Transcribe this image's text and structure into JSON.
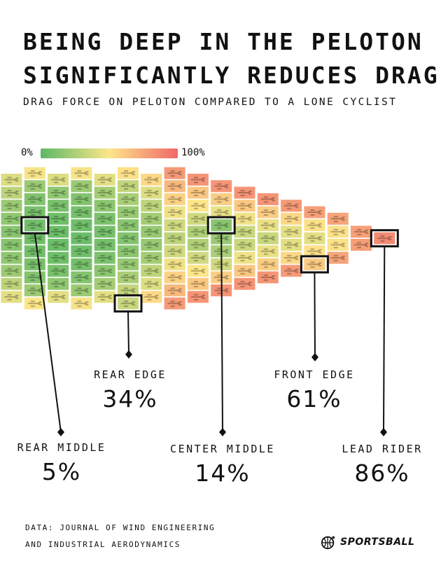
{
  "header": {
    "title_line1": "BEING DEEP IN THE PELOTON",
    "title_line2": "SIGNIFICANTLY REDUCES DRAG",
    "subtitle": "DRAG FORCE ON PELOTON COMPARED TO A LONE CYCLIST"
  },
  "legend": {
    "min_label": "0%",
    "max_label": "100%",
    "colors": [
      "#5cb865",
      "#fde68a",
      "#f0686a"
    ]
  },
  "chart_data": {
    "type": "heatmap",
    "title": "BEING DEEP IN THE PELOTON SIGNIFICANTLY REDUCES DRAG",
    "subtitle": "DRAG FORCE ON PELOTON COMPARED TO A LONE CYCLIST",
    "scale": {
      "min": 0,
      "max": 100,
      "unit": "%"
    },
    "columns": [
      {
        "rows": 10,
        "values": [
          40,
          30,
          20,
          16,
          14,
          14,
          16,
          20,
          30,
          42
        ]
      },
      {
        "rows": 11,
        "values": [
          48,
          20,
          12,
          9,
          7,
          6,
          7,
          9,
          12,
          20,
          50
        ]
      },
      {
        "rows": 10,
        "values": [
          40,
          16,
          9,
          6,
          5,
          5,
          6,
          9,
          16,
          42
        ]
      },
      {
        "rows": 11,
        "values": [
          48,
          20,
          12,
          8,
          6,
          5,
          6,
          8,
          12,
          20,
          48
        ]
      },
      {
        "rows": 10,
        "values": [
          42,
          22,
          15,
          10,
          8,
          8,
          10,
          15,
          22,
          42
        ]
      },
      {
        "rows": 11,
        "values": [
          52,
          32,
          24,
          18,
          14,
          12,
          14,
          18,
          24,
          32,
          34
        ]
      },
      {
        "rows": 10,
        "values": [
          55,
          40,
          30,
          22,
          18,
          18,
          22,
          30,
          40,
          55
        ]
      },
      {
        "rows": 11,
        "values": [
          80,
          68,
          58,
          46,
          36,
          30,
          36,
          46,
          58,
          68,
          80
        ]
      },
      {
        "rows": 10,
        "values": [
          82,
          62,
          50,
          36,
          26,
          26,
          36,
          50,
          62,
          82
        ]
      },
      {
        "rows": 9,
        "values": [
          82,
          60,
          44,
          14,
          20,
          24,
          36,
          60,
          82
        ]
      },
      {
        "rows": 8,
        "values": [
          82,
          62,
          46,
          34,
          34,
          46,
          62,
          82
        ]
      },
      {
        "rows": 7,
        "values": [
          82,
          60,
          44,
          34,
          44,
          60,
          82
        ]
      },
      {
        "rows": 6,
        "values": [
          80,
          56,
          42,
          42,
          56,
          80
        ]
      },
      {
        "rows": 5,
        "values": [
          78,
          52,
          42,
          52,
          61
        ]
      },
      {
        "rows": 4,
        "values": [
          76,
          52,
          52,
          76
        ]
      },
      {
        "rows": 2,
        "values": [
          78,
          78
        ]
      },
      {
        "rows": 1,
        "values": [
          86
        ]
      }
    ],
    "highlighted": [
      {
        "name": "REAR MIDDLE",
        "value": 5
      },
      {
        "name": "REAR EDGE",
        "value": 34
      },
      {
        "name": "CENTER MIDDLE",
        "value": 14
      },
      {
        "name": "FRONT EDGE",
        "value": 61
      },
      {
        "name": "LEAD RIDER",
        "value": 86
      }
    ]
  },
  "callouts": [
    {
      "label": "REAR MIDDLE",
      "value": "5%"
    },
    {
      "label": "REAR EDGE",
      "value": "34%"
    },
    {
      "label": "CENTER MIDDLE",
      "value": "14%"
    },
    {
      "label": "FRONT EDGE",
      "value": "61%"
    },
    {
      "label": "LEAD RIDER",
      "value": "86%"
    }
  ],
  "footer": {
    "source_line1": "DATA: JOURNAL OF WIND ENGINEERING",
    "source_line2": "AND INDUSTRIAL AERODYNAMICS",
    "brand": "SPORTSBALL",
    "brand_icon": "basketball-icon"
  }
}
